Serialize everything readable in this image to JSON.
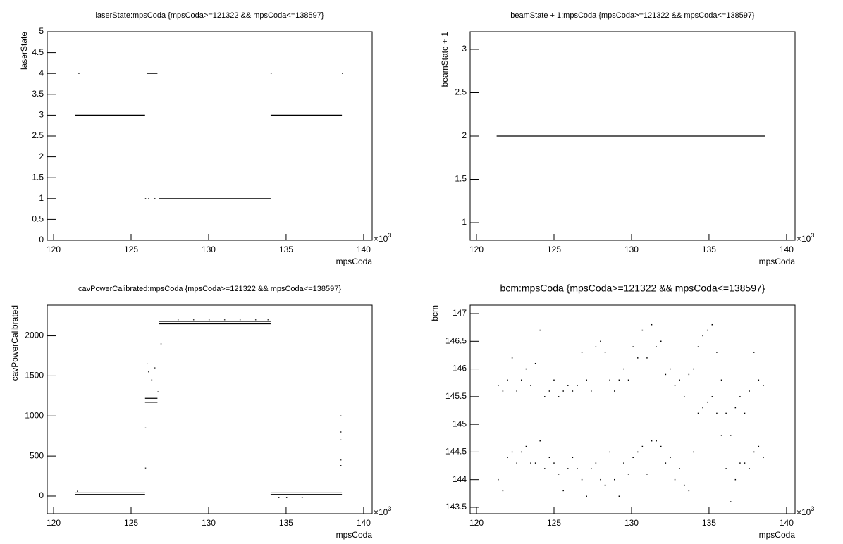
{
  "chart_data": [
    {
      "type": "line",
      "title": "laserState:mpsCoda {mpsCoda>=121322 && mpsCoda<=138597}",
      "xlabel": "mpsCoda",
      "ylabel": "laserState",
      "x_scale_base": "×10",
      "x_scale_exponent": "3",
      "xlim": [
        119.59,
        140.55
      ],
      "ylim": [
        0,
        5
      ],
      "xticks": [
        120,
        125,
        130,
        135,
        140
      ],
      "yticks": [
        0,
        0.5,
        1,
        1.5,
        2,
        2.5,
        3,
        3.5,
        4,
        4.5,
        5
      ],
      "color": "#000000",
      "x": [
        121.4,
        125.9,
        125.9,
        126.0,
        126.7,
        126.7,
        126.8,
        134.0,
        134.0,
        134.0,
        138.6,
        138.6,
        121.6,
        121.6,
        134.0,
        134.0,
        138.6,
        138.6,
        125.9,
        125.9,
        126.1,
        126.1,
        126.5
      ],
      "values": [
        3,
        3,
        null,
        4,
        4,
        null,
        1,
        1,
        null,
        3,
        3,
        null,
        4,
        null,
        4,
        null,
        4,
        null,
        1,
        null,
        1,
        null,
        1
      ]
    },
    {
      "type": "line",
      "title": "beamState + 1:mpsCoda {mpsCoda>=121322 && mpsCoda<=138597}",
      "xlabel": "mpsCoda",
      "ylabel": "beamState + 1",
      "x_scale_base": "×10",
      "x_scale_exponent": "3",
      "xlim": [
        119.59,
        140.55
      ],
      "ylim": [
        0.797,
        3.203
      ],
      "xticks": [
        120,
        125,
        130,
        135,
        140
      ],
      "yticks": [
        1,
        1.5,
        2,
        2.5,
        3
      ],
      "color": "#000000",
      "x": [
        121.3,
        138.6
      ],
      "values": [
        2,
        2
      ]
    },
    {
      "type": "line",
      "title": "cavPowerCalibrated:mpsCoda {mpsCoda>=121322 && mpsCoda<=138597}",
      "xlabel": "mpsCoda",
      "ylabel": "cavPowerCalibrated",
      "x_scale_base": "×10",
      "x_scale_exponent": "3",
      "xlim": [
        119.59,
        140.55
      ],
      "ylim": [
        -220,
        2383
      ],
      "xticks": [
        120,
        125,
        130,
        135,
        140
      ],
      "yticks": [
        0,
        500,
        1000,
        1500,
        2000
      ],
      "color": "#000000",
      "x": [
        121.4,
        125.9,
        125.9,
        121.4,
        125.9,
        125.9,
        125.9,
        126.7,
        126.7,
        125.9,
        126.7,
        126.7,
        126.8,
        134.0,
        134.0,
        126.8,
        134.0,
        134.0,
        134.0,
        138.6,
        138.6,
        134.0,
        138.6,
        138.6,
        121.5,
        121.5,
        125.9,
        125.9,
        125.9,
        125.9,
        126.0,
        126.0,
        126.1,
        126.1,
        126.3,
        126.3,
        126.5,
        126.5,
        126.7,
        126.7,
        126.9,
        126.9,
        128.0,
        128.0,
        129.0,
        129.0,
        130.0,
        130.0,
        131.0,
        131.0,
        132.0,
        132.0,
        133.0,
        133.0,
        133.8,
        133.8,
        134.5,
        134.5,
        135.0,
        135.0,
        136.0,
        136.0,
        138.5,
        138.5,
        138.5,
        138.5,
        138.5,
        138.5,
        138.5,
        138.5,
        138.5
      ],
      "values": [
        20,
        20,
        null,
        40,
        40,
        null,
        1170,
        1170,
        null,
        1220,
        1220,
        null,
        2150,
        2150,
        null,
        2180,
        2180,
        null,
        20,
        20,
        null,
        40,
        40,
        null,
        60,
        null,
        350,
        null,
        850,
        null,
        1650,
        null,
        1550,
        null,
        1450,
        null,
        1600,
        null,
        1300,
        null,
        1900,
        null,
        2200,
        null,
        2200,
        null,
        2200,
        null,
        2200,
        null,
        2200,
        null,
        2200,
        null,
        2200,
        null,
        -20,
        null,
        -20,
        null,
        -20,
        null,
        1000,
        null,
        800,
        null,
        700,
        null,
        450,
        null,
        380
      ]
    },
    {
      "type": "scatter",
      "title": "bcm:mpsCoda {mpsCoda>=121322 && mpsCoda<=138597}",
      "xlabel": "mpsCoda",
      "ylabel": "bcm",
      "x_scale_base": "×10",
      "x_scale_exponent": "3",
      "xlim": [
        119.59,
        140.55
      ],
      "ylim": [
        143.385,
        147.153
      ],
      "xticks": [
        120,
        125,
        130,
        135,
        140
      ],
      "yticks": [
        143.5,
        144,
        144.5,
        145,
        145.5,
        146,
        146.5,
        147
      ],
      "color": "#000000",
      "x": [
        121.4,
        121.4,
        121.7,
        121.7,
        122.0,
        122.0,
        122.3,
        122.3,
        122.6,
        122.6,
        122.9,
        122.9,
        123.2,
        123.2,
        123.5,
        123.5,
        123.8,
        123.8,
        124.1,
        124.1,
        124.4,
        124.4,
        124.7,
        124.7,
        125.0,
        125.0,
        125.3,
        125.3,
        125.6,
        125.6,
        125.9,
        125.9,
        126.2,
        126.2,
        126.5,
        126.5,
        126.8,
        126.8,
        127.1,
        127.1,
        127.4,
        127.4,
        127.7,
        127.7,
        128.0,
        128.0,
        128.3,
        128.3,
        128.6,
        128.6,
        128.9,
        128.9,
        129.2,
        129.2,
        129.5,
        129.5,
        129.8,
        129.8,
        130.1,
        130.1,
        130.4,
        130.4,
        130.7,
        130.7,
        131.0,
        131.0,
        131.3,
        131.3,
        131.6,
        131.6,
        131.9,
        131.9,
        132.2,
        132.2,
        132.5,
        132.5,
        132.8,
        132.8,
        133.1,
        133.1,
        133.4,
        133.4,
        133.7,
        133.7,
        134.0,
        134.0,
        134.3,
        134.3,
        134.6,
        134.6,
        134.9,
        134.9,
        135.2,
        135.2,
        135.5,
        135.5,
        135.8,
        135.8,
        136.1,
        136.1,
        136.4,
        136.4,
        136.7,
        136.7,
        137.0,
        137.0,
        137.3,
        137.3,
        137.6,
        137.6,
        137.9,
        137.9,
        138.2,
        138.2,
        138.5,
        138.5
      ],
      "values": [
        145.7,
        144.0,
        145.6,
        143.8,
        145.8,
        144.4,
        146.2,
        144.5,
        145.6,
        144.3,
        145.8,
        144.5,
        146.0,
        144.6,
        145.7,
        144.3,
        146.1,
        144.3,
        146.7,
        144.7,
        145.5,
        144.2,
        145.6,
        144.4,
        145.8,
        144.3,
        145.5,
        144.1,
        145.6,
        143.8,
        145.7,
        144.2,
        145.6,
        144.4,
        145.7,
        144.2,
        146.3,
        144.0,
        145.8,
        143.7,
        145.6,
        144.2,
        146.4,
        144.3,
        146.5,
        144.0,
        146.3,
        143.9,
        145.8,
        144.5,
        145.6,
        144.0,
        145.8,
        143.7,
        146.0,
        144.3,
        145.8,
        144.1,
        146.4,
        144.4,
        146.2,
        144.5,
        146.7,
        144.6,
        146.2,
        144.1,
        146.8,
        144.7,
        146.4,
        144.7,
        146.5,
        144.6,
        145.9,
        144.3,
        146.0,
        144.4,
        145.7,
        144.0,
        145.8,
        144.2,
        145.5,
        143.9,
        145.9,
        143.8,
        146.0,
        144.5,
        146.4,
        145.2,
        146.6,
        145.3,
        146.7,
        145.4,
        146.8,
        145.5,
        146.3,
        145.2,
        145.8,
        144.8,
        145.2,
        144.2,
        144.8,
        143.6,
        145.3,
        144.0,
        145.5,
        144.3,
        145.2,
        144.3,
        145.6,
        144.2,
        146.3,
        144.5,
        145.8,
        144.6,
        145.7,
        144.4
      ]
    }
  ]
}
